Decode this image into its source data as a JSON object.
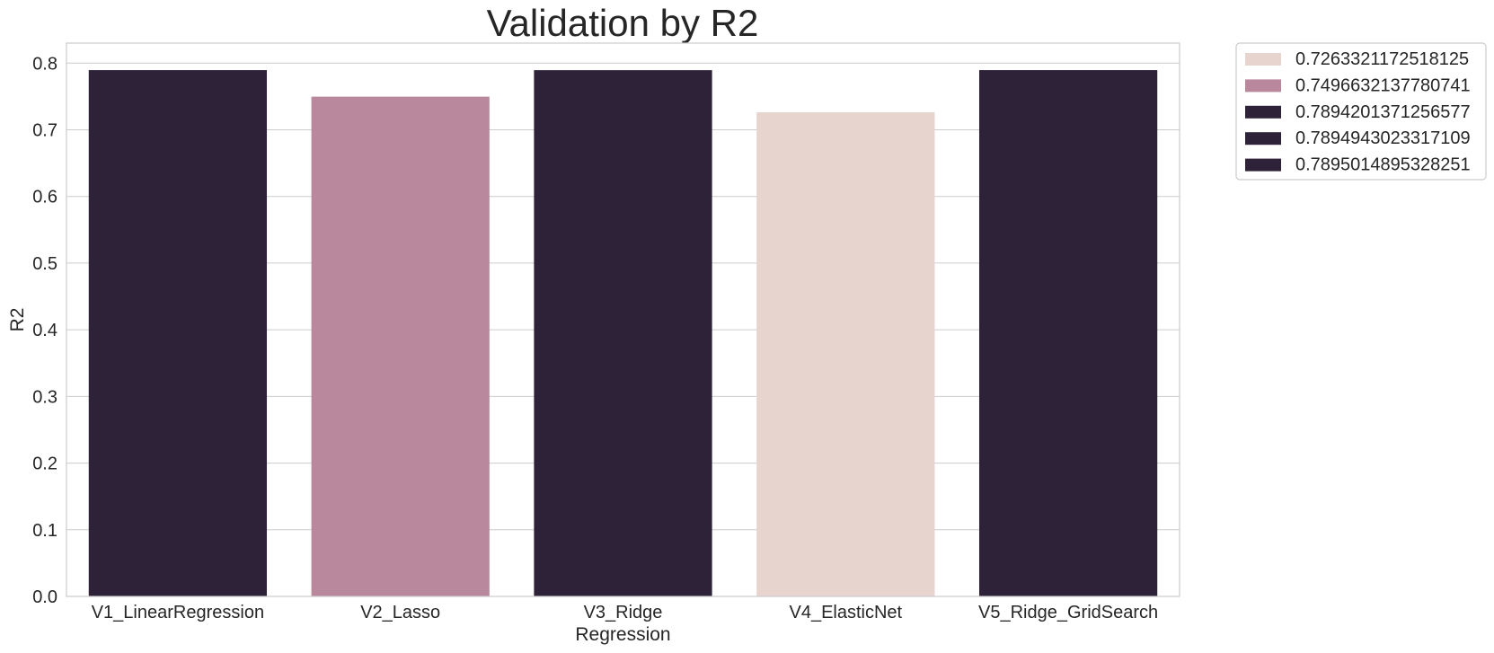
{
  "chart_data": {
    "type": "bar",
    "title": "Validation by R2",
    "xlabel": "Regression",
    "ylabel": "R2",
    "ylim": [
      0,
      0.83
    ],
    "yticks": [
      0.0,
      0.1,
      0.2,
      0.3,
      0.4,
      0.5,
      0.6,
      0.7,
      0.8
    ],
    "ytick_labels": [
      "0.0",
      "0.1",
      "0.2",
      "0.3",
      "0.4",
      "0.5",
      "0.6",
      "0.7",
      "0.8"
    ],
    "grid": true,
    "legend_position": "outside-top-right",
    "categories": [
      "V1_LinearRegression",
      "V2_Lasso",
      "V3_Ridge",
      "V4_ElasticNet",
      "V5_Ridge_GridSearch"
    ],
    "values": [
      0.7894943023317109,
      0.7496632137780741,
      0.7894201371256577,
      0.7263321172518125,
      0.7895014895328251
    ],
    "bar_colors": [
      "#2e2239",
      "#b9889c",
      "#2e2239",
      "#e8d4cf",
      "#2e2239"
    ],
    "legend": [
      {
        "label": "0.7263321172518125",
        "color": "#e8d4cf"
      },
      {
        "label": "0.7496632137780741",
        "color": "#b9889c"
      },
      {
        "label": "0.7894201371256577",
        "color": "#2e2239"
      },
      {
        "label": "0.7894943023317109",
        "color": "#2e2239"
      },
      {
        "label": "0.7895014895328251",
        "color": "#2e2239"
      }
    ]
  }
}
